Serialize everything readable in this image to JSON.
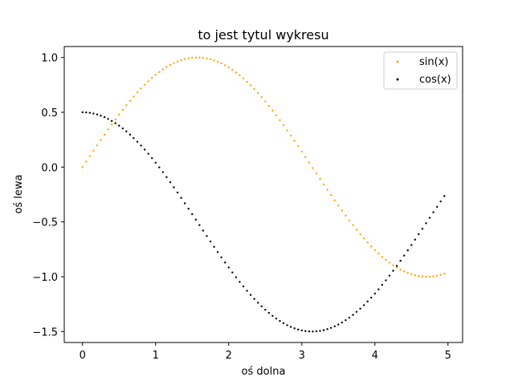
{
  "chart_data": {
    "type": "scatter",
    "title": "to jest tytul wykresu",
    "xlabel": "oś dolna",
    "ylabel": "oś lewa",
    "xlim": [
      -0.25,
      5.2
    ],
    "ylim": [
      -1.6,
      1.1
    ],
    "xticks": [
      0,
      1,
      2,
      3,
      4,
      5
    ],
    "xtick_labels": [
      "0",
      "1",
      "2",
      "3",
      "4",
      "5"
    ],
    "yticks": [
      -1.5,
      -1.0,
      -0.5,
      0.0,
      0.5,
      1.0
    ],
    "ytick_labels": [
      "−1.5",
      "−1.0",
      "−0.5",
      "0.0",
      "0.5",
      "1.0"
    ],
    "grid": false,
    "legend_position": "top-right",
    "x": {
      "start": 0.0,
      "stop": 5.0,
      "step": 0.05
    },
    "series": [
      {
        "name": "sin(x)",
        "color": "#ffa500",
        "formula": "sin(x)"
      },
      {
        "name": "cos(x)",
        "color": "#000000",
        "formula": "cos(x) - 0.5"
      }
    ]
  }
}
